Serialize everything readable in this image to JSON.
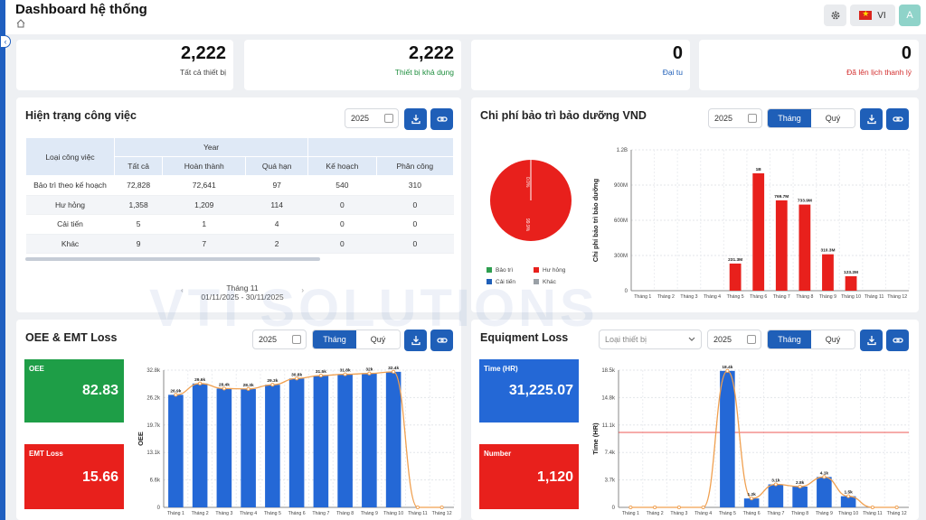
{
  "header": {
    "title": "Dashboard hệ thống",
    "language": "VI",
    "avatar_initial": "A"
  },
  "stats": [
    {
      "value": "2,222",
      "label": "Tất cả thiết bị",
      "color": "#444444"
    },
    {
      "value": "2,222",
      "label": "Thiết bị khả dụng",
      "color": "#1e8e3e"
    },
    {
      "value": "0",
      "label": "Đại tu",
      "color": "#1f5fb8"
    },
    {
      "value": "0",
      "label": "Đã lên lịch thanh lý",
      "color": "#d32f2f"
    }
  ],
  "work": {
    "title": "Hiện trạng công việc",
    "year": "2025",
    "header_group": "Year",
    "col_type": "Loại công việc",
    "columns": [
      "Tất cả",
      "Hoàn thành",
      "Quá hạn",
      "Kế hoạch",
      "Phân công"
    ],
    "rows": [
      {
        "type": "Bảo trì theo kế hoạch",
        "cells": [
          "72,828",
          "72,641",
          "97",
          "540",
          "310"
        ]
      },
      {
        "type": "Hư hỏng",
        "cells": [
          "1,358",
          "1,209",
          "114",
          "0",
          "0"
        ]
      },
      {
        "type": "Cải tiến",
        "cells": [
          "5",
          "1",
          "4",
          "0",
          "0"
        ]
      },
      {
        "type": "Khác",
        "cells": [
          "9",
          "7",
          "2",
          "0",
          "0"
        ]
      }
    ],
    "pager_month": "Tháng 11",
    "pager_range": "01/11/2025 - 30/11/2025"
  },
  "cost": {
    "title": "Chi phí bảo trì bảo dưỡng VND",
    "year": "2025",
    "tabs": [
      "Tháng",
      "Quý"
    ],
    "legend": [
      {
        "label": "Bảo trì",
        "color": "#2e9e4f"
      },
      {
        "label": "Hư hỏng",
        "color": "#e8201c"
      },
      {
        "label": "Cải tiến",
        "color": "#1f5fb8"
      },
      {
        "label": "Khác",
        "color": "#9aa0a6"
      }
    ],
    "pie_labels": [
      "0.0%",
      "99.9%"
    ]
  },
  "oee": {
    "title": "OEE & EMT Loss",
    "year": "2025",
    "tabs": [
      "Tháng",
      "Quý"
    ],
    "kpis": [
      {
        "label": "OEE",
        "value": "82.83",
        "color": "#1e9e47"
      },
      {
        "label": "EMT Loss",
        "value": "15.66",
        "color": "#e8201c"
      }
    ]
  },
  "equip": {
    "title": "Equiqment Loss",
    "device_placeholder": "Loại thiết bị",
    "year": "2025",
    "tabs": [
      "Tháng",
      "Quý"
    ],
    "kpis": [
      {
        "label": "Time (HR)",
        "value": "31,225.07",
        "color": "#2468d6"
      },
      {
        "label": "Number",
        "value": "1,120",
        "color": "#e8201c"
      }
    ]
  },
  "watermark": "VTI SOLUTIONS",
  "chart_data": [
    {
      "type": "bar",
      "ylabel": "Chi phí bảo trì bảo dưỡng",
      "categories": [
        "Tháng 1",
        "Tháng 2",
        "Tháng 3",
        "Tháng 4",
        "Tháng 5",
        "Tháng 6",
        "Tháng 7",
        "Tháng 8",
        "Tháng 9",
        "Tháng 10",
        "Tháng 11",
        "Tháng 12"
      ],
      "values": [
        0,
        0,
        0,
        0,
        231300000,
        1000000000,
        769700000,
        733900000,
        310300000,
        123200000,
        0,
        0
      ],
      "data_labels": [
        "",
        "",
        "",
        "",
        "231.3M",
        "1B",
        "769.7M",
        "733.9M",
        "310.3M",
        "123.2M",
        "",
        ""
      ],
      "yticks": [
        "0",
        "300M",
        "600M",
        "900M",
        "1.2B"
      ],
      "ylim": [
        0,
        1200000000
      ],
      "color": "#e8201c"
    },
    {
      "type": "bar",
      "ylabel": "OEE",
      "categories": [
        "Tháng 1",
        "Tháng 2",
        "Tháng 3",
        "Tháng 4",
        "Tháng 5",
        "Tháng 6",
        "Tháng 7",
        "Tháng 8",
        "Tháng 9",
        "Tháng 10",
        "Tháng 11",
        "Tháng 12"
      ],
      "values": [
        26900,
        29600,
        28400,
        28300,
        29300,
        30800,
        31500,
        31800,
        32000,
        32400,
        0,
        0
      ],
      "data_labels": [
        "26.9k",
        "29.6k",
        "28.4k",
        "28.3k",
        "29.3k",
        "30.8k",
        "31.5k",
        "31.8k",
        "32k",
        "32.4k",
        "",
        ""
      ],
      "yticks": [
        "0",
        "6.6k",
        "13.1k",
        "19.7k",
        "26.2k",
        "32.8k"
      ],
      "ylim": [
        0,
        32800
      ],
      "color": "#2468d6",
      "line_color": "#f0a050"
    },
    {
      "type": "bar",
      "ylabel": "Time (HR)",
      "categories": [
        "Tháng 1",
        "Tháng 2",
        "Tháng 3",
        "Tháng 4",
        "Tháng 5",
        "Tháng 6",
        "Tháng 7",
        "Tháng 8",
        "Tháng 9",
        "Tháng 10",
        "Tháng 11",
        "Tháng 12"
      ],
      "values": [
        0,
        0,
        0,
        0,
        18400,
        1200,
        3100,
        2800,
        4100,
        1500,
        0,
        0
      ],
      "data_labels": [
        "",
        "",
        "",
        "",
        "18.4k",
        "1.2k",
        "3.1k",
        "2.8k",
        "4.1k",
        "1.5k",
        "",
        ""
      ],
      "yticks": [
        "0",
        "3.7k",
        "7.4k",
        "11.1k",
        "14.8k",
        "18.5k"
      ],
      "ylim": [
        0,
        18500
      ],
      "reference_line": 10100,
      "color": "#2468d6",
      "line_color": "#f0a050"
    }
  ]
}
